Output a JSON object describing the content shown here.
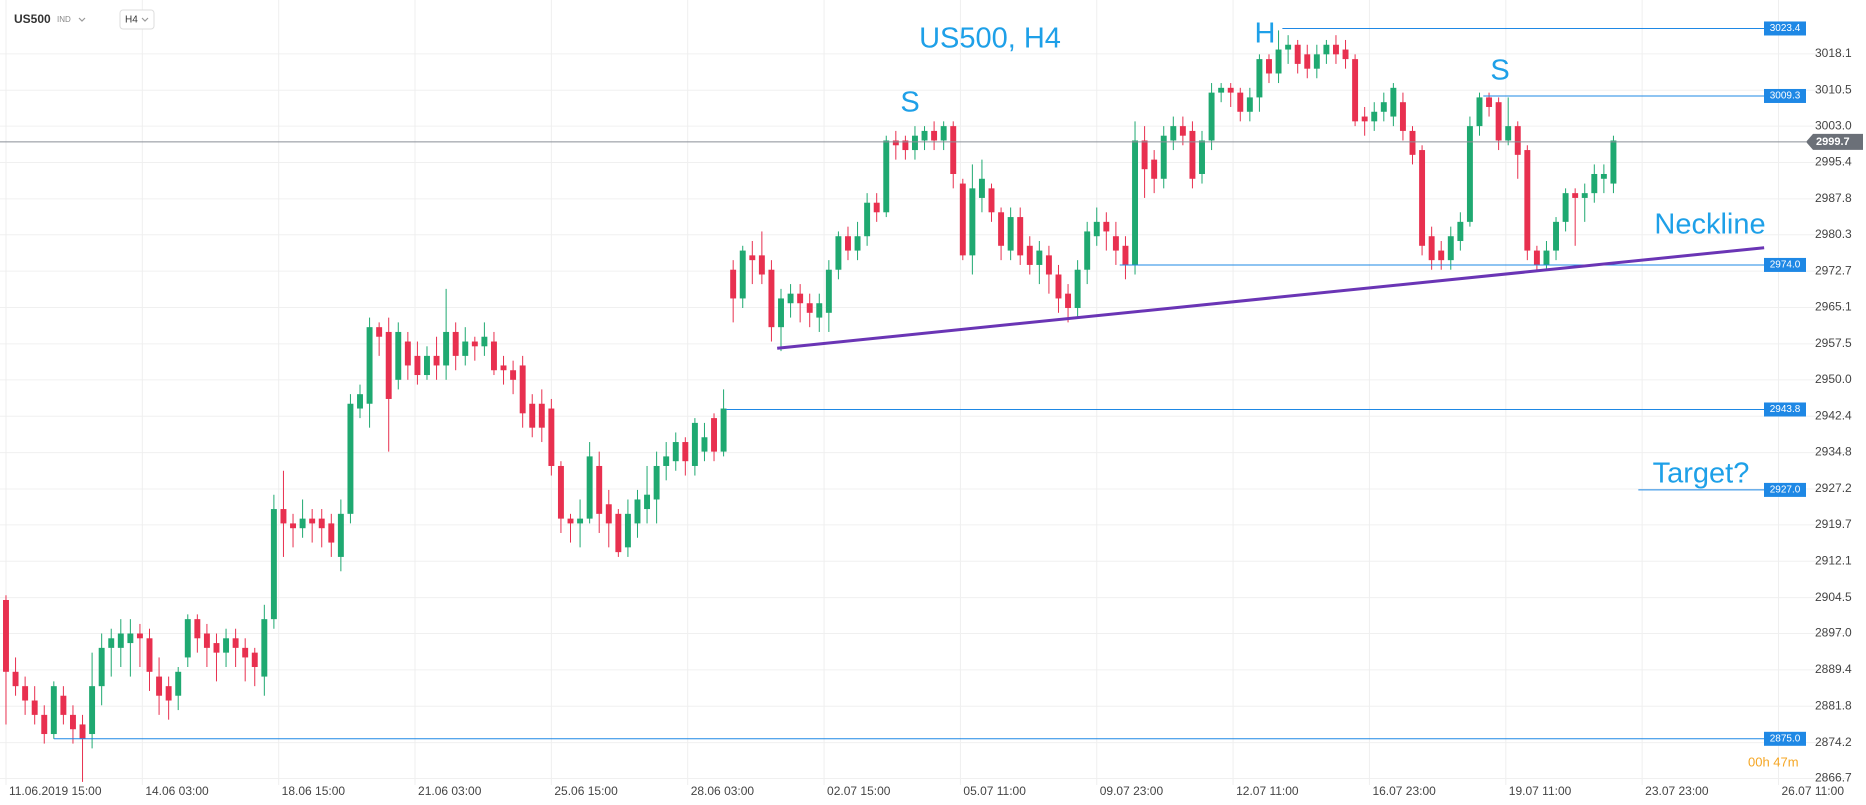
{
  "chart_data": {
    "type": "candlestick",
    "title": "US500, H4",
    "up_color": "#1fa971",
    "down_color": "#e8304f",
    "open": [
      2904,
      2889,
      2886,
      2883,
      2880,
      2876,
      2884,
      2880,
      2878,
      2876,
      2886,
      2894,
      2894,
      2895,
      2897,
      2896,
      2888,
      2886,
      2884,
      2892,
      2900,
      2897,
      2895,
      2893,
      2896,
      2894,
      2893,
      2888,
      2900,
      2923,
      2920,
      2919,
      2921,
      2921,
      2920,
      2913,
      2922,
      2944,
      2945,
      2961,
      2960,
      2950,
      2958,
      2955,
      2951,
      2955,
      2953,
      2960,
      2955,
      2958,
      2957,
      2958,
      2953,
      2952,
      2953,
      2945,
      2945,
      2944,
      2932,
      2921,
      2920,
      2921,
      2932,
      2924,
      2922,
      2915,
      2920,
      2923,
      2925,
      2932,
      2933,
      2937,
      2932,
      2935,
      2942,
      2935,
      2973,
      2967,
      2976,
      2976,
      2973,
      2961,
      2966,
      2968,
      2966,
      2963,
      2964,
      2973,
      2980,
      2977,
      2980,
      2987,
      2985,
      3000,
      3000,
      2998,
      3000,
      3002,
      3000,
      3003,
      2991,
      2976,
      2988,
      2990,
      2985,
      2977,
      2984,
      2978,
      2974,
      2976,
      2972,
      2968,
      2965,
      2973,
      2980,
      2983,
      2980,
      2978,
      2974,
      3000,
      2996,
      2992,
      3000,
      3003,
      3002,
      2993,
      3000,
      3010,
      3011,
      3010,
      3006,
      3009,
      3017,
      3014,
      3019,
      3020,
      3018,
      3015,
      3018,
      3020,
      3019,
      3017,
      3005,
      3004,
      3006,
      3005,
      3008,
      3002,
      2998,
      2980,
      2977,
      2975,
      2979,
      2983,
      3003,
      3009,
      3008,
      3000,
      3003,
      2998,
      2977,
      2974,
      2977,
      2983,
      2989,
      2988,
      2989,
      2992,
      2991
    ],
    "high": [
      2905,
      2892,
      2888,
      2886,
      2882,
      2887,
      2886,
      2882,
      2880,
      2893,
      2897,
      2898,
      2900,
      2900,
      2899,
      2898,
      2892,
      2888,
      2890,
      2901,
      2901,
      2899,
      2897,
      2898,
      2898,
      2896,
      2894,
      2903,
      2926,
      2931,
      2922,
      2925,
      2923,
      2923,
      2922,
      2925,
      2947,
      2949,
      2963,
      2962,
      2963,
      2962,
      2960,
      2958,
      2957,
      2959,
      2969,
      2962,
      2961,
      2959,
      2962,
      2960,
      2955,
      2954,
      2955,
      2947,
      2948,
      2946,
      2933,
      2922,
      2925,
      2937,
      2935,
      2927,
      2923,
      2925,
      2927,
      2932,
      2935,
      2937,
      2939,
      2938,
      2942,
      2941,
      2943,
      2948,
      2975,
      2978,
      2979,
      2981,
      2975,
      2969,
      2970,
      2970,
      2968,
      2968,
      2975,
      2981,
      2982,
      2983,
      2989,
      2989,
      3001,
      3002,
      3001,
      3003,
      3003,
      3004,
      3004,
      3004,
      2992,
      2995,
      2996,
      2991,
      2986,
      2986,
      2986,
      2980,
      2979,
      2978,
      2974,
      2970,
      2975,
      2983,
      2986,
      2985,
      2983,
      2980,
      3004,
      3003,
      2998,
      3003,
      3005,
      3005,
      3004,
      3002,
      3012,
      3012,
      3012,
      3011,
      3011,
      3018,
      3018,
      3023,
      3022,
      3021,
      3020,
      3020,
      3021,
      3022,
      3021,
      3018,
      3007,
      3008,
      3010,
      3012,
      3010,
      3003,
      2999,
      2982,
      2979,
      2982,
      2985,
      3005,
      3010,
      3010,
      3009,
      3009,
      3004,
      2999,
      2978,
      2979,
      2984,
      2990,
      2990,
      2991,
      2995,
      2995,
      3001
    ],
    "low": [
      2878,
      2884,
      2880,
      2878,
      2874,
      2875,
      2878,
      2874,
      2866,
      2873,
      2882,
      2888,
      2890,
      2888,
      2890,
      2885,
      2880,
      2879,
      2881,
      2890,
      2893,
      2890,
      2887,
      2890,
      2890,
      2887,
      2886,
      2884,
      2898,
      2913,
      2915,
      2917,
      2916,
      2915,
      2913,
      2910,
      2920,
      2942,
      2940,
      2955,
      2935,
      2948,
      2950,
      2949,
      2950,
      2950,
      2950,
      2952,
      2953,
      2954,
      2955,
      2951,
      2949,
      2947,
      2940,
      2938,
      2937,
      2930,
      2918,
      2916,
      2915,
      2920,
      2918,
      2915,
      2913,
      2913,
      2917,
      2920,
      2920,
      2929,
      2931,
      2930,
      2930,
      2933,
      2933,
      2934,
      2962,
      2965,
      2970,
      2970,
      2958,
      2956,
      2963,
      2962,
      2961,
      2960,
      2960,
      2971,
      2975,
      2975,
      2978,
      2983,
      2984,
      2996,
      2996,
      2996,
      2998,
      2998,
      2998,
      2990,
      2975,
      2972,
      2985,
      2983,
      2975,
      2975,
      2974,
      2972,
      2970,
      2968,
      2964,
      2962,
      2963,
      2970,
      2978,
      2977,
      2974,
      2971,
      2972,
      2988,
      2989,
      2990,
      2998,
      2999,
      2990,
      2991,
      2998,
      3008,
      3007,
      3004,
      3004,
      3006,
      3012,
      3012,
      3016,
      3014,
      3013,
      3013,
      3016,
      3016,
      3015,
      3003,
      3001,
      3002,
      3004,
      3003,
      3000,
      2995,
      2976,
      2973,
      2973,
      2973,
      2977,
      2982,
      3001,
      3005,
      2998,
      2999,
      2992,
      2975,
      2973,
      2973,
      2975,
      2981,
      2978,
      2983,
      2987,
      2989,
      2989
    ],
    "close": [
      2889,
      2886,
      2883,
      2880,
      2876,
      2886,
      2880,
      2877,
      2875,
      2886,
      2894,
      2896,
      2897,
      2897,
      2896,
      2889,
      2884,
      2883,
      2889,
      2900,
      2896,
      2894,
      2893,
      2896,
      2894,
      2892,
      2890,
      2900,
      2923,
      2920,
      2919,
      2921,
      2920,
      2919,
      2916,
      2922,
      2945,
      2947,
      2961,
      2959,
      2946,
      2960,
      2953,
      2951,
      2955,
      2953,
      2960,
      2955,
      2958,
      2957,
      2959,
      2952,
      2952,
      2950,
      2943,
      2940,
      2940,
      2932,
      2921,
      2920,
      2921,
      2934,
      2922,
      2920,
      2914,
      2922,
      2925,
      2926,
      2932,
      2934,
      2937,
      2933,
      2941,
      2938,
      2935,
      2944,
      2967,
      2977,
      2975,
      2972,
      2961,
      2967,
      2968,
      2966,
      2964,
      2966,
      2973,
      2980,
      2977,
      2980,
      2987,
      2985,
      3000,
      2999,
      2998,
      3001,
      3002,
      3000,
      3003,
      2993,
      2976,
      2990,
      2992,
      2985,
      2978,
      2984,
      2976,
      2974,
      2977,
      2972,
      2967,
      2965,
      2973,
      2981,
      2983,
      2981,
      2977,
      2974,
      3000,
      2994,
      2992,
      3001,
      3003,
      3001,
      2992,
      3000,
      3010,
      3011,
      3010,
      3006,
      3009,
      3017,
      3014,
      3019,
      3020,
      3016,
      3015,
      3018,
      3020,
      3018,
      3017,
      3004,
      3004,
      3006,
      3008,
      3011,
      3002,
      2997,
      2978,
      2975,
      2975,
      2980,
      2983,
      3003,
      3009,
      3007,
      3000,
      3003,
      2997,
      2977,
      2974,
      2977,
      2983,
      2989,
      2988,
      2989,
      2993,
      2993,
      3000
    ],
    "xlim": [
      -0.625,
      188.125
    ],
    "ylim": [
      2865.35,
      3029.35
    ],
    "xticks": [
      {
        "value": 0,
        "label": "11.06.2019 15:00"
      },
      {
        "value": 14.25,
        "label": "14.06 03:00"
      },
      {
        "value": 28.5,
        "label": "18.06 15:00"
      },
      {
        "value": 42.75,
        "label": "21.06 03:00"
      },
      {
        "value": 57,
        "label": "25.06 15:00"
      },
      {
        "value": 71.25,
        "label": "28.06 03:00"
      },
      {
        "value": 85.5,
        "label": "02.07 15:00"
      },
      {
        "value": 99.75,
        "label": "05.07 11:00"
      },
      {
        "value": 114,
        "label": "09.07 23:00"
      },
      {
        "value": 128.25,
        "label": "12.07 11:00"
      },
      {
        "value": 142.5,
        "label": "16.07 23:00"
      },
      {
        "value": 156.75,
        "label": "19.07 11:00"
      },
      {
        "value": 171,
        "label": "23.07 23:00"
      },
      {
        "value": 185.25,
        "label": "26.07 11:00"
      }
    ],
    "yticks": [
      3018.1,
      3010.5,
      {
        "value": 3003,
        "label": "3003.0"
      },
      2995.4,
      2987.8,
      2980.3,
      2972.7,
      2965.1,
      2957.5,
      {
        "value": 2950,
        "label": "2950.0"
      },
      2942.4,
      2934.8,
      2927.2,
      2919.7,
      2912.1,
      2904.5,
      {
        "value": 2897,
        "label": "2897.0"
      },
      2889.4,
      2881.8,
      2874.2,
      2866.7
    ],
    "grid": true,
    "level_color": "#1e88e5",
    "levels": [
      {
        "value": 3023.4,
        "from": 133.4
      },
      {
        "value": 3009.3,
        "from": 154.4
      },
      {
        "value": 2999.7,
        "current": true
      },
      {
        "value": 2974,
        "label": "2974.0",
        "from": 116.4
      },
      {
        "value": 2943.8,
        "from": 75.25
      },
      {
        "value": 2927,
        "label": "2927.0",
        "from": 170.6
      },
      {
        "value": 2875,
        "label": "2875.0",
        "from": 5
      }
    ],
    "neckline": {
      "color": "#6a35b5",
      "x": [
        80.6,
        183.75
      ],
      "y": [
        2956.6,
        2977.6
      ]
    },
    "annotations": [
      "S",
      "H",
      "S",
      "Neckline",
      "Target?"
    ]
  },
  "ui": {
    "symbol": "US500",
    "market": "IND",
    "timeframe": "H4",
    "countdown": "00h 47m"
  }
}
